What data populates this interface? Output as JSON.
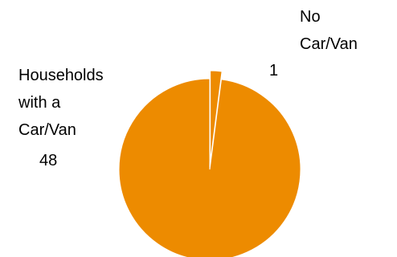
{
  "chart_data": {
    "type": "pie",
    "title": "",
    "slices": [
      {
        "label_lines": [
          "No",
          "Car/Van"
        ],
        "value": 1,
        "value_label": "1",
        "color": "#ED8B00",
        "exploded": true
      },
      {
        "label_lines": [
          "Households",
          "with a",
          "Car/Van"
        ],
        "value": 48,
        "value_label": "48",
        "color": "#ED8B00",
        "exploded": false
      }
    ],
    "legend": "none",
    "start_angle": "12 o'clock, clockwise"
  }
}
